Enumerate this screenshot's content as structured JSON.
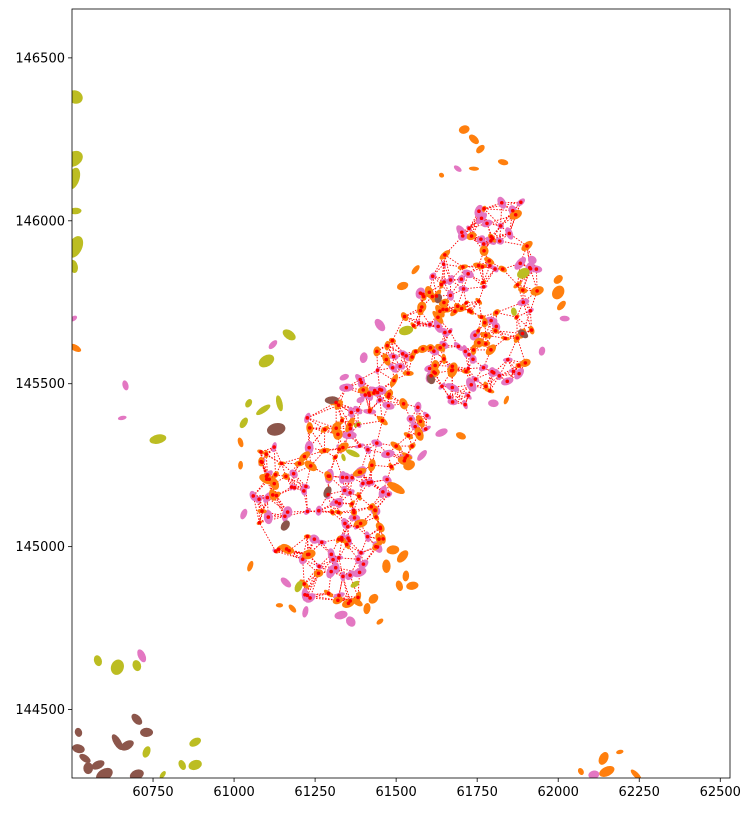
{
  "chart_data": {
    "type": "scatter",
    "title": "",
    "xlabel": "",
    "ylabel": "",
    "xlim": [
      60500,
      62530
    ],
    "ylim": [
      144290,
      146650
    ],
    "xticks": [
      60750,
      61000,
      61250,
      61500,
      61750,
      62000,
      62250,
      62500
    ],
    "yticks": [
      144500,
      145000,
      145500,
      146000,
      146500
    ],
    "xtick_labels": [
      "60750",
      "61000",
      "61250",
      "61500",
      "61750",
      "62000",
      "62250",
      "62500"
    ],
    "ytick_labels": [
      "144500",
      "145000",
      "145500",
      "146000",
      "146500"
    ],
    "grid": false,
    "legend": "none",
    "colors": {
      "pink": "#e377c2",
      "orange": "#ff7f0e",
      "olive": "#bcbd22",
      "brown": "#8c564b",
      "edges": "#ff0000",
      "nodes": "#ff0000"
    },
    "cluster_region": [
      [
        61040,
        145080
      ],
      [
        61090,
        145330
      ],
      [
        61200,
        145390
      ],
      [
        61340,
        145480
      ],
      [
        61420,
        145580
      ],
      [
        61510,
        145690
      ],
      [
        61620,
        145870
      ],
      [
        61790,
        146080
      ],
      [
        61880,
        146080
      ],
      [
        61960,
        145830
      ],
      [
        61890,
        145520
      ],
      [
        61780,
        145460
      ],
      [
        61620,
        145380
      ],
      [
        61480,
        145190
      ],
      [
        61460,
        145000
      ],
      [
        61390,
        144840
      ],
      [
        61300,
        144800
      ],
      [
        61210,
        144830
      ],
      [
        61120,
        144930
      ],
      [
        61060,
        145000
      ]
    ],
    "cell_counts": {
      "pink": 170,
      "orange": 150,
      "olive": 8,
      "brown": 6
    },
    "outer_cells": [
      {
        "x": 60510,
        "y": 146380,
        "c": "olive",
        "s": 8
      },
      {
        "x": 60505,
        "y": 146190,
        "c": "olive",
        "s": 9
      },
      {
        "x": 60505,
        "y": 146130,
        "c": "olive",
        "s": 8
      },
      {
        "x": 60510,
        "y": 145920,
        "c": "olive",
        "s": 9
      },
      {
        "x": 60510,
        "y": 146030,
        "c": "olive",
        "s": 6
      },
      {
        "x": 60505,
        "y": 145860,
        "c": "olive",
        "s": 6
      },
      {
        "x": 60505,
        "y": 145700,
        "c": "pink",
        "s": 4
      },
      {
        "x": 60510,
        "y": 145610,
        "c": "orange",
        "s": 5
      },
      {
        "x": 60765,
        "y": 145330,
        "c": "olive",
        "s": 9
      },
      {
        "x": 60665,
        "y": 145495,
        "c": "pink",
        "s": 5
      },
      {
        "x": 60655,
        "y": 145395,
        "c": "pink",
        "s": 4
      },
      {
        "x": 61100,
        "y": 145570,
        "c": "olive",
        "s": 8
      },
      {
        "x": 61170,
        "y": 145650,
        "c": "olive",
        "s": 6
      },
      {
        "x": 61120,
        "y": 145620,
        "c": "pink",
        "s": 4
      },
      {
        "x": 61030,
        "y": 145380,
        "c": "olive",
        "s": 6
      },
      {
        "x": 61090,
        "y": 145420,
        "c": "olive",
        "s": 6
      },
      {
        "x": 61140,
        "y": 145440,
        "c": "olive",
        "s": 6
      },
      {
        "x": 61130,
        "y": 145360,
        "c": "brown",
        "s": 8
      },
      {
        "x": 61045,
        "y": 145440,
        "c": "olive",
        "s": 5
      },
      {
        "x": 60580,
        "y": 144650,
        "c": "olive",
        "s": 6
      },
      {
        "x": 60640,
        "y": 144630,
        "c": "olive",
        "s": 8
      },
      {
        "x": 60700,
        "y": 144635,
        "c": "olive",
        "s": 5
      },
      {
        "x": 60715,
        "y": 144665,
        "c": "pink",
        "s": 5
      },
      {
        "x": 60700,
        "y": 144470,
        "c": "brown",
        "s": 6
      },
      {
        "x": 60730,
        "y": 144430,
        "c": "brown",
        "s": 6
      },
      {
        "x": 60640,
        "y": 144400,
        "c": "brown",
        "s": 7
      },
      {
        "x": 60670,
        "y": 144390,
        "c": "brown",
        "s": 6
      },
      {
        "x": 60520,
        "y": 144380,
        "c": "brown",
        "s": 6
      },
      {
        "x": 60540,
        "y": 144350,
        "c": "brown",
        "s": 6
      },
      {
        "x": 60520,
        "y": 144430,
        "c": "brown",
        "s": 5
      },
      {
        "x": 60580,
        "y": 144330,
        "c": "brown",
        "s": 7
      },
      {
        "x": 60550,
        "y": 144320,
        "c": "brown",
        "s": 6
      },
      {
        "x": 60600,
        "y": 144300,
        "c": "brown",
        "s": 7
      },
      {
        "x": 60700,
        "y": 144300,
        "c": "brown",
        "s": 6
      },
      {
        "x": 60730,
        "y": 144370,
        "c": "olive",
        "s": 5
      },
      {
        "x": 60780,
        "y": 144300,
        "c": "olive",
        "s": 4
      },
      {
        "x": 60840,
        "y": 144330,
        "c": "olive",
        "s": 5
      },
      {
        "x": 60880,
        "y": 144330,
        "c": "olive",
        "s": 6
      },
      {
        "x": 60880,
        "y": 144400,
        "c": "olive",
        "s": 5
      },
      {
        "x": 62140,
        "y": 144350,
        "c": "orange",
        "s": 6
      },
      {
        "x": 62150,
        "y": 144310,
        "c": "orange",
        "s": 6
      },
      {
        "x": 62110,
        "y": 144300,
        "c": "pink",
        "s": 5
      },
      {
        "x": 62070,
        "y": 144310,
        "c": "orange",
        "s": 4
      },
      {
        "x": 62240,
        "y": 144300,
        "c": "orange",
        "s": 5
      },
      {
        "x": 62190,
        "y": 144370,
        "c": "orange",
        "s": 3
      },
      {
        "x": 61710,
        "y": 146280,
        "c": "orange",
        "s": 5
      },
      {
        "x": 61740,
        "y": 146250,
        "c": "orange",
        "s": 5
      },
      {
        "x": 61760,
        "y": 146220,
        "c": "orange",
        "s": 4
      },
      {
        "x": 61830,
        "y": 146180,
        "c": "orange",
        "s": 4
      },
      {
        "x": 61690,
        "y": 146160,
        "c": "pink",
        "s": 4
      },
      {
        "x": 61640,
        "y": 146140,
        "c": "orange",
        "s": 3
      },
      {
        "x": 61740,
        "y": 146160,
        "c": "orange",
        "s": 4
      },
      {
        "x": 61920,
        "y": 145880,
        "c": "pink",
        "s": 5
      },
      {
        "x": 62000,
        "y": 145780,
        "c": "orange",
        "s": 7
      },
      {
        "x": 62010,
        "y": 145740,
        "c": "orange",
        "s": 6
      },
      {
        "x": 62000,
        "y": 145820,
        "c": "orange",
        "s": 5
      },
      {
        "x": 62020,
        "y": 145700,
        "c": "pink",
        "s": 4
      },
      {
        "x": 61950,
        "y": 145600,
        "c": "pink",
        "s": 4
      },
      {
        "x": 61490,
        "y": 144990,
        "c": "orange",
        "s": 7
      },
      {
        "x": 61520,
        "y": 144970,
        "c": "orange",
        "s": 6
      },
      {
        "x": 61470,
        "y": 144940,
        "c": "orange",
        "s": 7
      },
      {
        "x": 61530,
        "y": 144910,
        "c": "orange",
        "s": 6
      },
      {
        "x": 61550,
        "y": 144880,
        "c": "orange",
        "s": 6
      },
      {
        "x": 61510,
        "y": 144880,
        "c": "orange",
        "s": 5
      },
      {
        "x": 61430,
        "y": 144840,
        "c": "orange",
        "s": 6
      },
      {
        "x": 61410,
        "y": 144810,
        "c": "orange",
        "s": 5
      },
      {
        "x": 61380,
        "y": 144830,
        "c": "orange",
        "s": 5
      },
      {
        "x": 61450,
        "y": 144770,
        "c": "orange",
        "s": 4
      },
      {
        "x": 61330,
        "y": 144790,
        "c": "pink",
        "s": 7
      },
      {
        "x": 61360,
        "y": 144770,
        "c": "pink",
        "s": 6
      },
      {
        "x": 61220,
        "y": 144800,
        "c": "pink",
        "s": 5
      },
      {
        "x": 61180,
        "y": 144810,
        "c": "orange",
        "s": 5
      },
      {
        "x": 61140,
        "y": 144820,
        "c": "orange",
        "s": 4
      },
      {
        "x": 61160,
        "y": 144890,
        "c": "pink",
        "s": 5
      },
      {
        "x": 61050,
        "y": 144940,
        "c": "orange",
        "s": 5
      },
      {
        "x": 61030,
        "y": 145100,
        "c": "pink",
        "s": 5
      },
      {
        "x": 61020,
        "y": 145250,
        "c": "orange",
        "s": 4
      },
      {
        "x": 61020,
        "y": 145320,
        "c": "orange",
        "s": 4
      },
      {
        "x": 61500,
        "y": 145180,
        "c": "orange",
        "s": 7
      },
      {
        "x": 61540,
        "y": 145250,
        "c": "orange",
        "s": 6
      },
      {
        "x": 61580,
        "y": 145280,
        "c": "pink",
        "s": 5
      },
      {
        "x": 61640,
        "y": 145350,
        "c": "pink",
        "s": 6
      },
      {
        "x": 61700,
        "y": 145340,
        "c": "orange",
        "s": 5
      },
      {
        "x": 61800,
        "y": 145440,
        "c": "pink",
        "s": 5
      },
      {
        "x": 61840,
        "y": 145450,
        "c": "orange",
        "s": 4
      },
      {
        "x": 61450,
        "y": 145680,
        "c": "pink",
        "s": 5
      },
      {
        "x": 61520,
        "y": 145800,
        "c": "orange",
        "s": 5
      },
      {
        "x": 61560,
        "y": 145850,
        "c": "orange",
        "s": 4
      },
      {
        "x": 61390,
        "y": 145450,
        "c": "pink",
        "s": 4
      },
      {
        "x": 61340,
        "y": 145520,
        "c": "pink",
        "s": 5
      },
      {
        "x": 61400,
        "y": 145580,
        "c": "pink",
        "s": 5
      }
    ]
  }
}
